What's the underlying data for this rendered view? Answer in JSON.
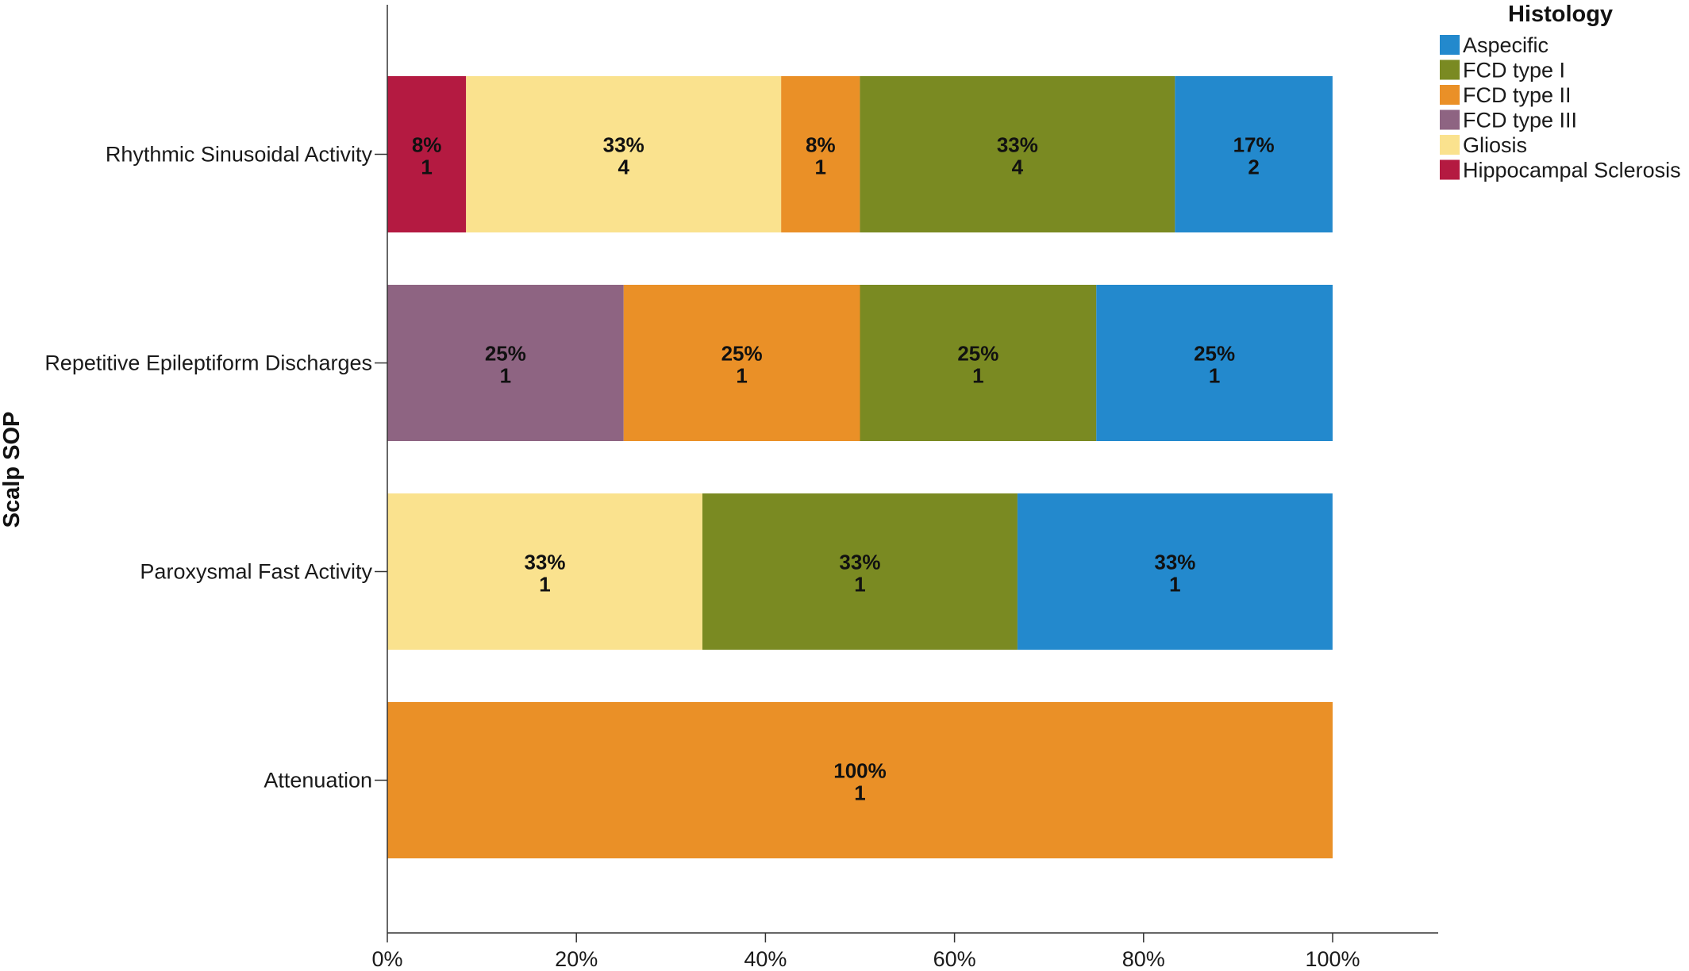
{
  "chart_data": {
    "type": "bar",
    "orientation": "horizontal",
    "stacked": true,
    "ylabel": "Scalp SOP",
    "xlabel": "",
    "xlim": [
      0,
      100
    ],
    "x_ticks": [
      "0%",
      "20%",
      "40%",
      "60%",
      "80%",
      "100%"
    ],
    "x_tick_values": [
      0,
      20,
      40,
      60,
      80,
      100
    ],
    "categories": [
      "Rhythmic Sinusoidal Activity",
      "Repetitive Epileptiform Discharges",
      "Paroxysmal Fast Activity",
      "Attenuation"
    ],
    "legend": {
      "title": "Histology",
      "position": "top-right",
      "entries": [
        {
          "name": "Aspecific",
          "color": "#2389cd"
        },
        {
          "name": "FCD type I",
          "color": "#7a8a22"
        },
        {
          "name": "FCD type II",
          "color": "#ea9027"
        },
        {
          "name": "FCD type III",
          "color": "#8e6482"
        },
        {
          "name": "Gliosis",
          "color": "#fae28e"
        },
        {
          "name": "Hippocampal Sclerosis",
          "color": "#b41a41"
        }
      ]
    },
    "stack_order": [
      "Hippocampal Sclerosis",
      "FCD type III",
      "Gliosis",
      "FCD type II",
      "FCD type I",
      "Aspecific"
    ],
    "bars": [
      {
        "category": "Rhythmic Sinusoidal Activity",
        "segments": [
          {
            "series": "Hippocampal Sclerosis",
            "percent": 8.33,
            "percent_label": "8%",
            "count": "1"
          },
          {
            "series": "Gliosis",
            "percent": 33.33,
            "percent_label": "33%",
            "count": "4"
          },
          {
            "series": "FCD type II",
            "percent": 8.33,
            "percent_label": "8%",
            "count": "1"
          },
          {
            "series": "FCD type I",
            "percent": 33.33,
            "percent_label": "33%",
            "count": "4"
          },
          {
            "series": "Aspecific",
            "percent": 16.67,
            "percent_label": "17%",
            "count": "2"
          }
        ]
      },
      {
        "category": "Repetitive Epileptiform Discharges",
        "segments": [
          {
            "series": "FCD type III",
            "percent": 25,
            "percent_label": "25%",
            "count": "1"
          },
          {
            "series": "FCD type II",
            "percent": 25,
            "percent_label": "25%",
            "count": "1"
          },
          {
            "series": "FCD type I",
            "percent": 25,
            "percent_label": "25%",
            "count": "1"
          },
          {
            "series": "Aspecific",
            "percent": 25,
            "percent_label": "25%",
            "count": "1"
          }
        ]
      },
      {
        "category": "Paroxysmal Fast Activity",
        "segments": [
          {
            "series": "Gliosis",
            "percent": 33.33,
            "percent_label": "33%",
            "count": "1"
          },
          {
            "series": "FCD type I",
            "percent": 33.33,
            "percent_label": "33%",
            "count": "1"
          },
          {
            "series": "Aspecific",
            "percent": 33.33,
            "percent_label": "33%",
            "count": "1"
          }
        ]
      },
      {
        "category": "Attenuation",
        "segments": [
          {
            "series": "FCD type II",
            "percent": 100,
            "percent_label": "100%",
            "count": "1"
          }
        ]
      }
    ]
  }
}
